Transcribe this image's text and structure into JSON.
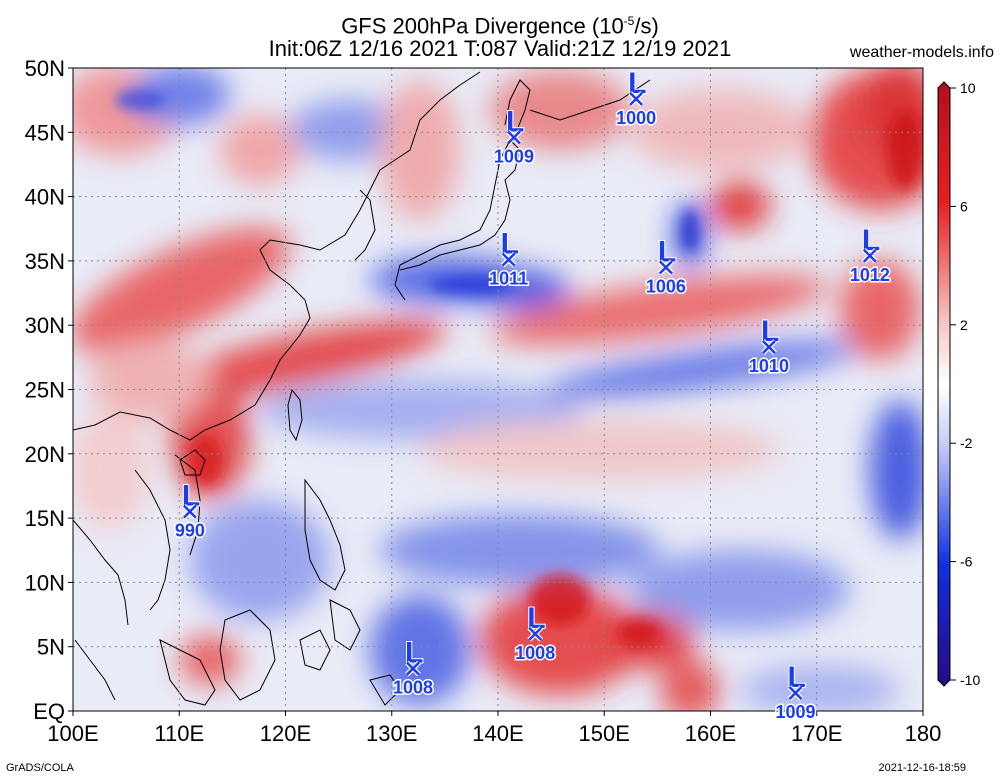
{
  "header": {
    "title_line1_prefix": "GFS 200hPa Divergence (10",
    "title_exponent": "-5",
    "title_line1_suffix": "/s)",
    "title_line2": "Init:06Z 12/16 2021 T:087 Valid:21Z 12/19 2021",
    "site": "weather-models.info"
  },
  "footer": {
    "left": "GrADS/COLA",
    "right": "2021-12-16-18:59"
  },
  "map": {
    "lon_range": [
      100,
      180
    ],
    "lat_range": [
      0,
      50
    ],
    "lat_labels": [
      "50N",
      "45N",
      "40N",
      "35N",
      "30N",
      "25N",
      "20N",
      "15N",
      "10N",
      "5N",
      "EQ"
    ],
    "lat_values": [
      50,
      45,
      40,
      35,
      30,
      25,
      20,
      15,
      10,
      5,
      0
    ],
    "lon_labels": [
      "100E",
      "110E",
      "120E",
      "130E",
      "140E",
      "150E",
      "160E",
      "170E",
      "180"
    ],
    "lon_values": [
      100,
      110,
      120,
      130,
      140,
      150,
      160,
      170,
      180
    ],
    "low_symbol": "L",
    "lows": [
      {
        "lon": 111.0,
        "lat": 15.5,
        "pressure": "990"
      },
      {
        "lon": 141.5,
        "lat": 44.6,
        "pressure": "1009"
      },
      {
        "lon": 153.0,
        "lat": 47.6,
        "pressure": "1000"
      },
      {
        "lon": 141.0,
        "lat": 35.1,
        "pressure": "1011"
      },
      {
        "lon": 155.8,
        "lat": 34.5,
        "pressure": "1006"
      },
      {
        "lon": 175.0,
        "lat": 35.4,
        "pressure": "1012"
      },
      {
        "lon": 165.5,
        "lat": 28.3,
        "pressure": "1010"
      },
      {
        "lon": 132.0,
        "lat": 3.3,
        "pressure": "1008"
      },
      {
        "lon": 143.5,
        "lat": 6.0,
        "pressure": "1008"
      },
      {
        "lon": 168.0,
        "lat": 1.4,
        "pressure": "1009"
      }
    ]
  },
  "colorbar": {
    "labels": [
      "10",
      "6",
      "2",
      "-2",
      "-6",
      "-10"
    ],
    "values": [
      10,
      6,
      2,
      -2,
      -6,
      -10
    ],
    "colors": {
      "max": "#b01020",
      "pos": "#e82020",
      "zero": "#ffffff",
      "neg": "#1030e0",
      "min": "#2a0a80"
    }
  },
  "colors": {
    "low_marker": "#1c3cf0",
    "low_outline": "#ffffff"
  }
}
